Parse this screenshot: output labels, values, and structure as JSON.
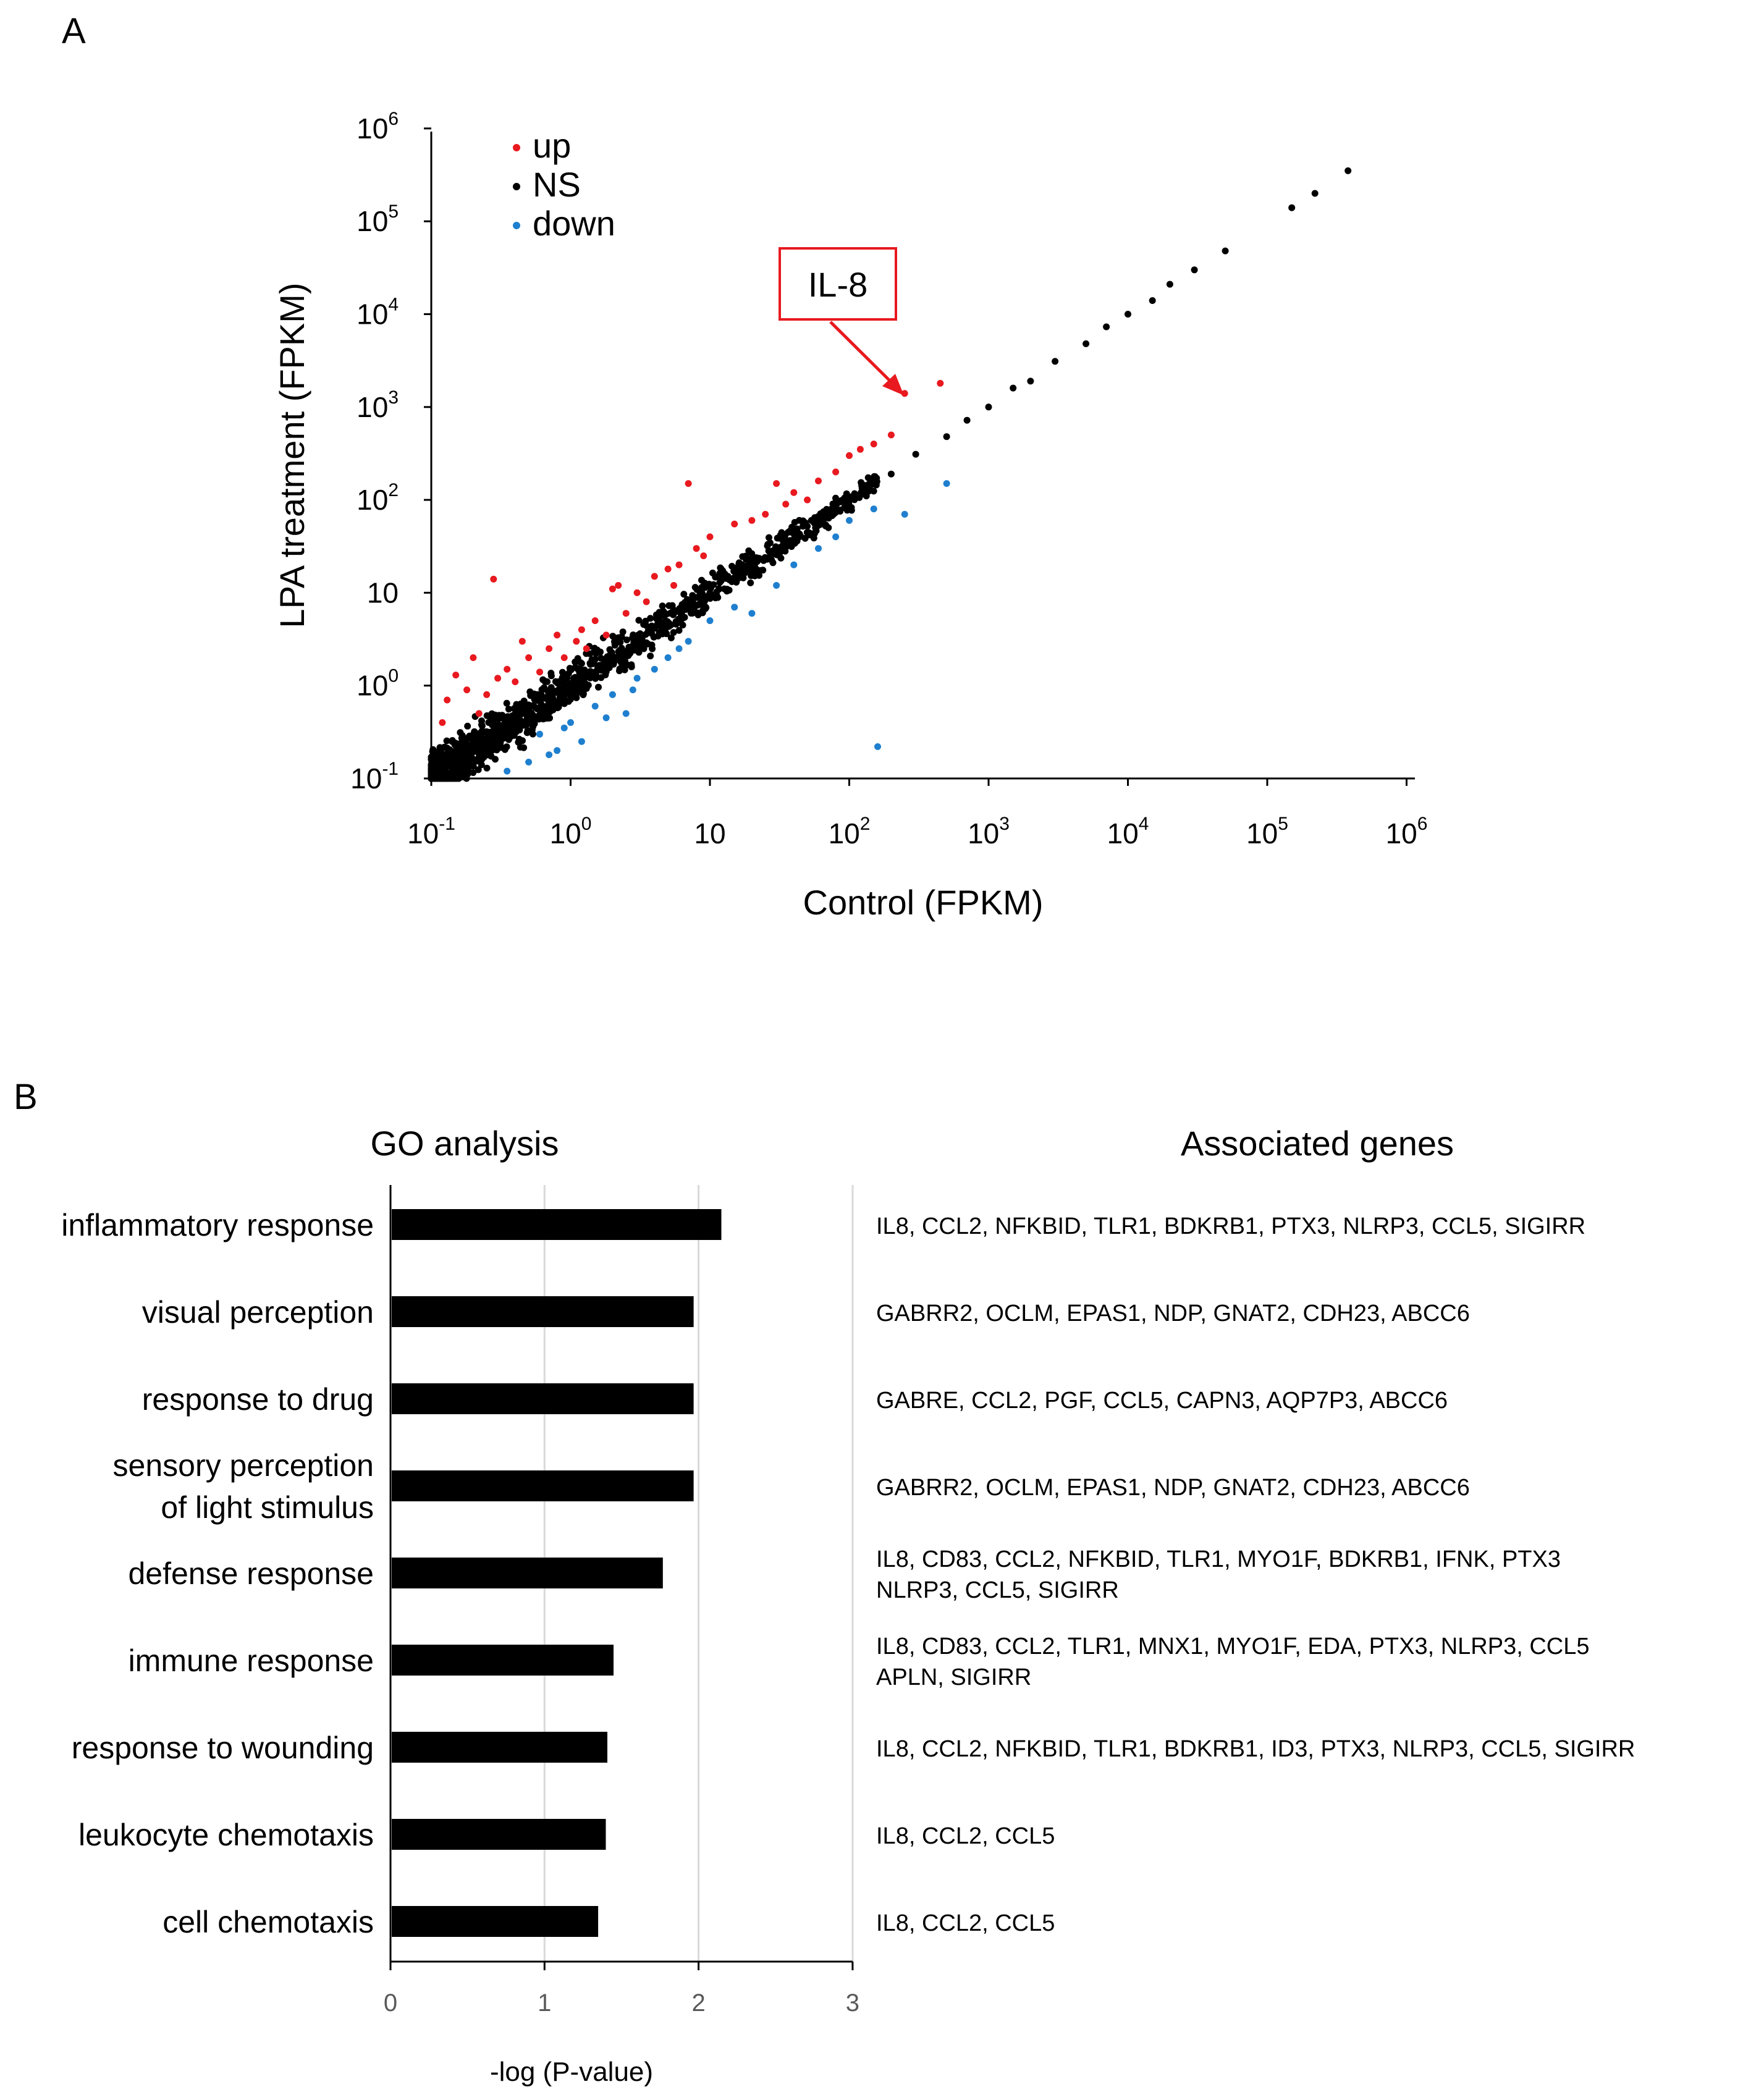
{
  "panels": {
    "a": "A",
    "b": "B"
  },
  "colors": {
    "up": "#e8191f",
    "ns": "#000000",
    "down": "#1f7fcf",
    "bar": "#000000",
    "grid": "#d9d9d9",
    "callout": "#e8191f"
  },
  "chart_data": [
    {
      "type": "scatter",
      "scale": "log10",
      "xlabel": "Control (FPKM)",
      "ylabel": "LPA treatment (FPKM)",
      "xlim": [
        0.1,
        1000000
      ],
      "ylim": [
        0.1,
        1000000
      ],
      "x_ticks": [
        {
          "base": "10",
          "exp": "-1"
        },
        {
          "base": "10",
          "exp": "0"
        },
        {
          "base": "10",
          "exp": ""
        },
        {
          "base": "10",
          "exp": "2"
        },
        {
          "base": "10",
          "exp": "3"
        },
        {
          "base": "10",
          "exp": "4"
        },
        {
          "base": "10",
          "exp": "5"
        },
        {
          "base": "10",
          "exp": "6"
        }
      ],
      "y_ticks": [
        {
          "base": "10",
          "exp": "-1"
        },
        {
          "base": "10",
          "exp": "0"
        },
        {
          "base": "10",
          "exp": ""
        },
        {
          "base": "10",
          "exp": "2"
        },
        {
          "base": "10",
          "exp": "3"
        },
        {
          "base": "10",
          "exp": "4"
        },
        {
          "base": "10",
          "exp": "5"
        },
        {
          "base": "10",
          "exp": "6"
        }
      ],
      "legend": {
        "position": "top-left",
        "entries": [
          "up",
          "NS",
          "down"
        ]
      },
      "annotation": {
        "text": "IL-8",
        "x": 250,
        "y": 1400
      },
      "series": [
        {
          "name": "up",
          "points": [
            [
              0.28,
              14
            ],
            [
              0.3,
              1.2
            ],
            [
              0.35,
              1.5
            ],
            [
              0.45,
              3
            ],
            [
              0.6,
              1.4
            ],
            [
              0.8,
              3.5
            ],
            [
              1.2,
              4
            ],
            [
              1.5,
              5
            ],
            [
              2,
              11
            ],
            [
              2.2,
              12
            ],
            [
              3,
              10
            ],
            [
              4,
              15
            ],
            [
              5,
              18
            ],
            [
              6,
              20
            ],
            [
              7,
              150
            ],
            [
              8,
              30
            ],
            [
              10,
              40
            ],
            [
              15,
              55
            ],
            [
              20,
              60
            ],
            [
              25,
              70
            ],
            [
              30,
              150
            ],
            [
              35,
              90
            ],
            [
              40,
              120
            ],
            [
              50,
              100
            ],
            [
              60,
              160
            ],
            [
              80,
              200
            ],
            [
              100,
              300
            ],
            [
              120,
              350
            ],
            [
              150,
              400
            ],
            [
              200,
              500
            ],
            [
              250,
              1400
            ],
            [
              450,
              1800
            ],
            [
              0.12,
              0.4
            ],
            [
              0.13,
              0.7
            ],
            [
              0.15,
              1.3
            ],
            [
              0.18,
              0.9
            ],
            [
              0.2,
              2
            ],
            [
              0.22,
              0.5
            ],
            [
              0.25,
              0.8
            ],
            [
              0.4,
              1.1
            ],
            [
              0.5,
              2
            ],
            [
              0.7,
              2.5
            ],
            [
              0.9,
              2
            ],
            [
              1.1,
              3
            ],
            [
              1.3,
              2.5
            ],
            [
              1.8,
              3.5
            ],
            [
              2.5,
              6
            ],
            [
              3.5,
              8
            ],
            [
              5.5,
              12
            ],
            [
              9,
              25
            ]
          ]
        },
        {
          "name": "NS",
          "points": [
            [
              0.15,
              0.15
            ],
            [
              0.2,
              0.2
            ],
            [
              0.3,
              0.3
            ],
            [
              0.5,
              0.5
            ],
            [
              0.7,
              0.65
            ],
            [
              1,
              1
            ],
            [
              1.5,
              1.4
            ],
            [
              2,
              2.1
            ],
            [
              3,
              3
            ],
            [
              5,
              4.8
            ],
            [
              7,
              7.3
            ],
            [
              10,
              10
            ],
            [
              15,
              14
            ],
            [
              20,
              21
            ],
            [
              30,
              29
            ],
            [
              50,
              52
            ],
            [
              70,
              68
            ],
            [
              100,
              100
            ],
            [
              150,
              160
            ],
            [
              200,
              190
            ],
            [
              300,
              310
            ],
            [
              500,
              480
            ],
            [
              700,
              720
            ],
            [
              1000,
              1000
            ],
            [
              1500,
              1600
            ],
            [
              2000,
              1900
            ],
            [
              3000,
              3100
            ],
            [
              5000,
              4800
            ],
            [
              7000,
              7300
            ],
            [
              10000,
              10000
            ],
            [
              15000,
              14000
            ],
            [
              20000,
              21000
            ],
            [
              30000,
              30000
            ],
            [
              50000,
              48000
            ],
            [
              150000,
              140000
            ],
            [
              220000,
              200000
            ],
            [
              380000,
              350000
            ]
          ]
        },
        {
          "name": "down",
          "points": [
            [
              0.35,
              0.12
            ],
            [
              0.5,
              0.15
            ],
            [
              0.6,
              0.3
            ],
            [
              0.8,
              0.2
            ],
            [
              1,
              0.4
            ],
            [
              1.2,
              0.25
            ],
            [
              1.5,
              0.6
            ],
            [
              2,
              0.8
            ],
            [
              2.5,
              0.5
            ],
            [
              3,
              1.2
            ],
            [
              4,
              1.5
            ],
            [
              5,
              2
            ],
            [
              7,
              3
            ],
            [
              10,
              5
            ],
            [
              15,
              7
            ],
            [
              20,
              6
            ],
            [
              30,
              12
            ],
            [
              40,
              20
            ],
            [
              60,
              30
            ],
            [
              80,
              40
            ],
            [
              100,
              60
            ],
            [
              150,
              80
            ],
            [
              160,
              0.22
            ],
            [
              250,
              70
            ],
            [
              500,
              150
            ],
            [
              0.7,
              0.18
            ],
            [
              0.9,
              0.35
            ],
            [
              1.8,
              0.45
            ],
            [
              2.8,
              0.9
            ],
            [
              6,
              2.5
            ]
          ]
        }
      ]
    },
    {
      "type": "bar",
      "orientation": "horizontal",
      "title": "GO analysis",
      "xlabel": "-log (P-value)",
      "xlim": [
        0,
        3
      ],
      "x_ticks": [
        "0",
        "1",
        "2",
        "3"
      ],
      "categories": [
        {
          "lines": [
            "inflammatory response"
          ]
        },
        {
          "lines": [
            "visual perception"
          ]
        },
        {
          "lines": [
            "response to drug"
          ]
        },
        {
          "lines": [
            "sensory perception",
            "of light stimulus"
          ]
        },
        {
          "lines": [
            "defense response"
          ]
        },
        {
          "lines": [
            "immune response"
          ]
        },
        {
          "lines": [
            "response to wounding"
          ]
        },
        {
          "lines": [
            "leukocyte chemotaxis"
          ]
        },
        {
          "lines": [
            "cell chemotaxis"
          ]
        }
      ],
      "values": [
        2.14,
        1.96,
        1.96,
        1.96,
        1.76,
        1.44,
        1.4,
        1.39,
        1.34
      ],
      "genes_header": "Associated genes",
      "genes": [
        {
          "lines": [
            "IL8, CCL2, NFKBID, TLR1, BDKRB1, PTX3, NLRP3, CCL5, SIGIRR"
          ]
        },
        {
          "lines": [
            "GABRR2, OCLM, EPAS1, NDP, GNAT2, CDH23, ABCC6"
          ]
        },
        {
          "lines": [
            "GABRE, CCL2, PGF, CCL5, CAPN3, AQP7P3, ABCC6"
          ]
        },
        {
          "lines": [
            "GABRR2, OCLM, EPAS1, NDP, GNAT2, CDH23, ABCC6"
          ]
        },
        {
          "lines": [
            "IL8, CD83, CCL2, NFKBID, TLR1, MYO1F, BDKRB1, IFNK, PTX3",
            "NLRP3, CCL5, SIGIRR"
          ]
        },
        {
          "lines": [
            "IL8, CD83, CCL2, TLR1, MNX1, MYO1F, EDA, PTX3, NLRP3, CCL5",
            "APLN, SIGIRR"
          ]
        },
        {
          "lines": [
            "IL8, CCL2, NFKBID, TLR1, BDKRB1, ID3, PTX3, NLRP3, CCL5, SIGIRR"
          ]
        },
        {
          "lines": [
            "IL8, CCL2, CCL5"
          ]
        },
        {
          "lines": [
            "IL8, CCL2, CCL5"
          ]
        }
      ]
    }
  ]
}
